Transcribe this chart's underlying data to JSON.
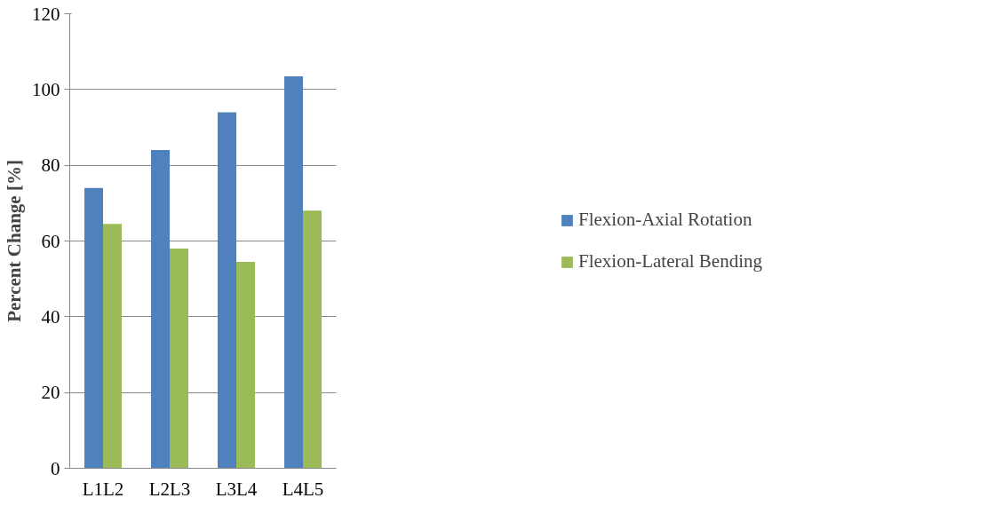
{
  "chart_data": {
    "type": "bar",
    "ylabel": "Percent Change [%]",
    "categories": [
      "L1L2",
      "L2L3",
      "L3L4",
      "L4L5"
    ],
    "series": [
      {
        "name": "Flexion-Axial Rotation",
        "color": "#4f81bd",
        "values": [
          74,
          84,
          94,
          103.5
        ]
      },
      {
        "name": "Flexion-Lateral Bending",
        "color": "#9bbb59",
        "values": [
          64.5,
          58,
          54.5,
          68
        ]
      }
    ],
    "ylim": [
      0,
      120
    ],
    "yticks": [
      0,
      20,
      40,
      60,
      80,
      100,
      120
    ],
    "grid": "y",
    "legend": "right"
  }
}
